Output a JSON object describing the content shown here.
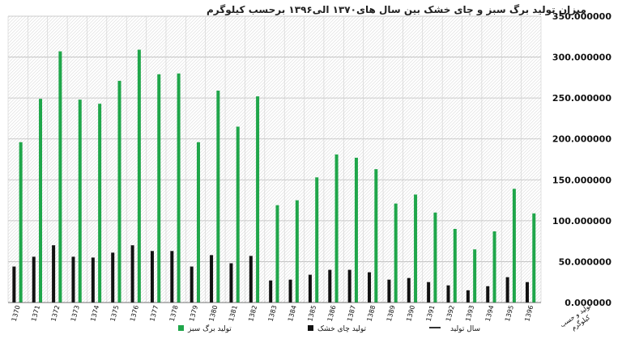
{
  "chart_data": {
    "type": "bar",
    "title": "میزان تولید برگ سبز و چای خشک بین سال های۱۳۷۰ الی۱۳۹۶ برحسب کیلوگرم",
    "categories": [
      "1370",
      "1371",
      "1372",
      "1373",
      "1374",
      "1375",
      "1376",
      "1377",
      "1378",
      "1379",
      "1380",
      "1381",
      "1382",
      "1383",
      "1384",
      "1385",
      "1386",
      "1387",
      "1388",
      "1389",
      "1390",
      "1391",
      "1392",
      "1393",
      "1394",
      "1395",
      "1396"
    ],
    "series": [
      {
        "name": "تولید برگ سبز",
        "color": "#1fa64a",
        "values": [
          196,
          249,
          307,
          248,
          243,
          271,
          309,
          279,
          280,
          196,
          259,
          215,
          252,
          119,
          125,
          153,
          181,
          177,
          163,
          121,
          132,
          110,
          90,
          65,
          87,
          139,
          109
        ]
      },
      {
        "name": "تولید چای خشک",
        "color": "#111111",
        "values": [
          44,
          56,
          70,
          56,
          55,
          61,
          70,
          63,
          63,
          44,
          58,
          48,
          57,
          27,
          28,
          34,
          40,
          40,
          37,
          28,
          30,
          25,
          21,
          15,
          20,
          31,
          25
        ]
      }
    ],
    "ylim": [
      0,
      350
    ],
    "yticks": [
      0,
      50,
      100,
      150,
      200,
      250,
      300,
      350
    ],
    "ytick_labels": [
      "0.000000",
      "50.000000",
      "100.000000",
      "150.000000",
      "200.000000",
      "250.000000",
      "300.000000",
      "350.000000"
    ],
    "xlabel": "سال تولید",
    "ylabel_lines": [
      "تولید و حسب",
      "کیلوگرم"
    ],
    "grid": true,
    "legend_position": "bottom"
  }
}
